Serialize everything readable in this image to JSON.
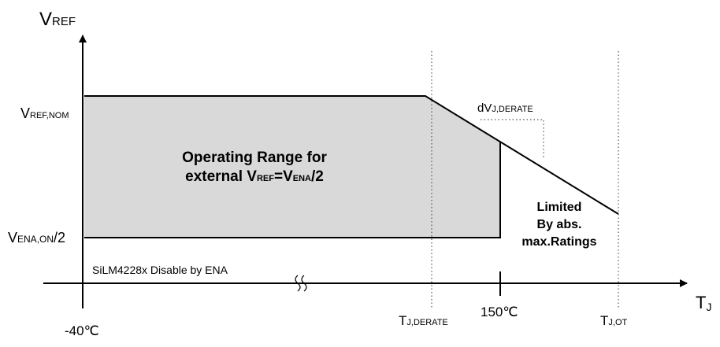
{
  "axes": {
    "y_label": {
      "main": "V",
      "sub": "REF"
    },
    "x_label": {
      "main": "T",
      "sub": "J"
    }
  },
  "y_levels": [
    {
      "main": "V",
      "sub": "REF,NOM"
    },
    {
      "main": "V",
      "sub": "ENA,ON",
      "suffix": "/2"
    }
  ],
  "x_marks": {
    "min": "-40℃",
    "derate": {
      "main": "T",
      "sub": "J,DERATE"
    },
    "max": "150℃",
    "ot": {
      "main": "T",
      "sub": "J,OT"
    }
  },
  "region_label": {
    "line1": "Operating Range for",
    "line2": {
      "a": "external V",
      "b": "REF",
      "c": "=V",
      "d": "ENA",
      "e": "/2"
    }
  },
  "derate_label": {
    "main": "dV",
    "sub": "J,DERATE"
  },
  "limited_label": [
    "Limited",
    "By abs.",
    "max.Ratings"
  ],
  "disable_label": "SiLM4228x Disable by ENA"
}
